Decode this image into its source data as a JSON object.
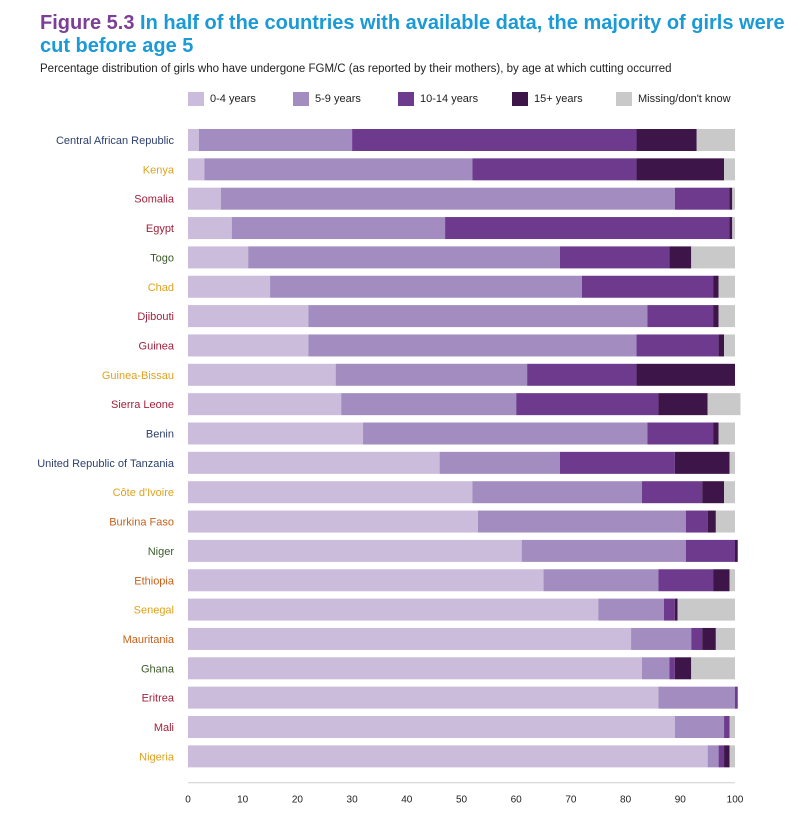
{
  "figure_label": "Figure 5.3",
  "title": "In half of the countries with available data, the majority of girls were cut before age 5",
  "subtitle": "Percentage distribution of girls who have undergone FGM/C (as reported by their mothers), by age at which cutting occurred",
  "chart_data": {
    "type": "bar",
    "orientation": "horizontal",
    "stacked": true,
    "title": "In half of the countries with available data, the majority of girls were cut before age 5",
    "xlim": [
      0,
      100
    ],
    "x_ticks": [
      0,
      10,
      20,
      30,
      40,
      50,
      60,
      70,
      80,
      90,
      100
    ],
    "grid": false,
    "legend_position": "top",
    "categories": [
      "Central African Republic",
      "Kenya",
      "Somalia",
      "Egypt",
      "Togo",
      "Chad",
      "Djibouti",
      "Guinea",
      "Guinea-Bissau",
      "Sierra Leone",
      "Benin",
      "United Republic of Tanzania",
      "Côte d'Ivoire",
      "Burkina Faso",
      "Niger",
      "Ethiopia",
      "Senegal",
      "Mauritania",
      "Ghana",
      "Eritrea",
      "Mali",
      "Nigeria"
    ],
    "category_colors": [
      "#2e3f6e",
      "#e0a21e",
      "#a3213c",
      "#a3213c",
      "#3e5a2b",
      "#e0a21e",
      "#a3213c",
      "#a3213c",
      "#e0a21e",
      "#a3213c",
      "#2e3f6e",
      "#2e3f6e",
      "#e0a21e",
      "#c8601a",
      "#3e5a2b",
      "#c8601a",
      "#e0a21e",
      "#c8601a",
      "#3e5a2b",
      "#a3213c",
      "#a3213c",
      "#e0a21e"
    ],
    "series": [
      {
        "name": "0-4 years",
        "color": "#cbbcdb",
        "values": [
          2,
          3,
          6,
          8,
          11,
          15,
          22,
          22,
          27,
          28,
          32,
          46,
          52,
          53,
          61,
          65,
          75,
          81,
          83,
          86,
          89,
          95
        ]
      },
      {
        "name": "5-9 years",
        "color": "#a38dc0",
        "values": [
          28,
          49,
          83,
          39,
          57,
          57,
          62,
          60,
          35,
          32,
          52,
          22,
          31,
          38,
          30,
          21,
          12,
          11,
          5,
          14,
          9,
          2
        ]
      },
      {
        "name": "10-14 years",
        "color": "#6d3a8e",
        "values": [
          52,
          30,
          10,
          52,
          20,
          24,
          12,
          15,
          20,
          26,
          12,
          21,
          11,
          4,
          9,
          10,
          2,
          2,
          1,
          0.5,
          1,
          1
        ]
      },
      {
        "name": "15+ years",
        "color": "#3d1548",
        "values": [
          11,
          16,
          0.5,
          0.5,
          4,
          1,
          1,
          1,
          18,
          9,
          1,
          10,
          4,
          1.5,
          0.5,
          3,
          0.5,
          2.5,
          3,
          0,
          0,
          1
        ]
      },
      {
        "name": "Missing/don't know",
        "color": "#c9c9c9",
        "values": [
          7,
          2,
          0.5,
          0.5,
          8,
          3,
          3,
          2,
          0,
          6,
          3,
          1,
          2,
          3.5,
          0,
          1,
          10.5,
          3.5,
          8,
          0,
          1,
          1
        ]
      }
    ]
  }
}
